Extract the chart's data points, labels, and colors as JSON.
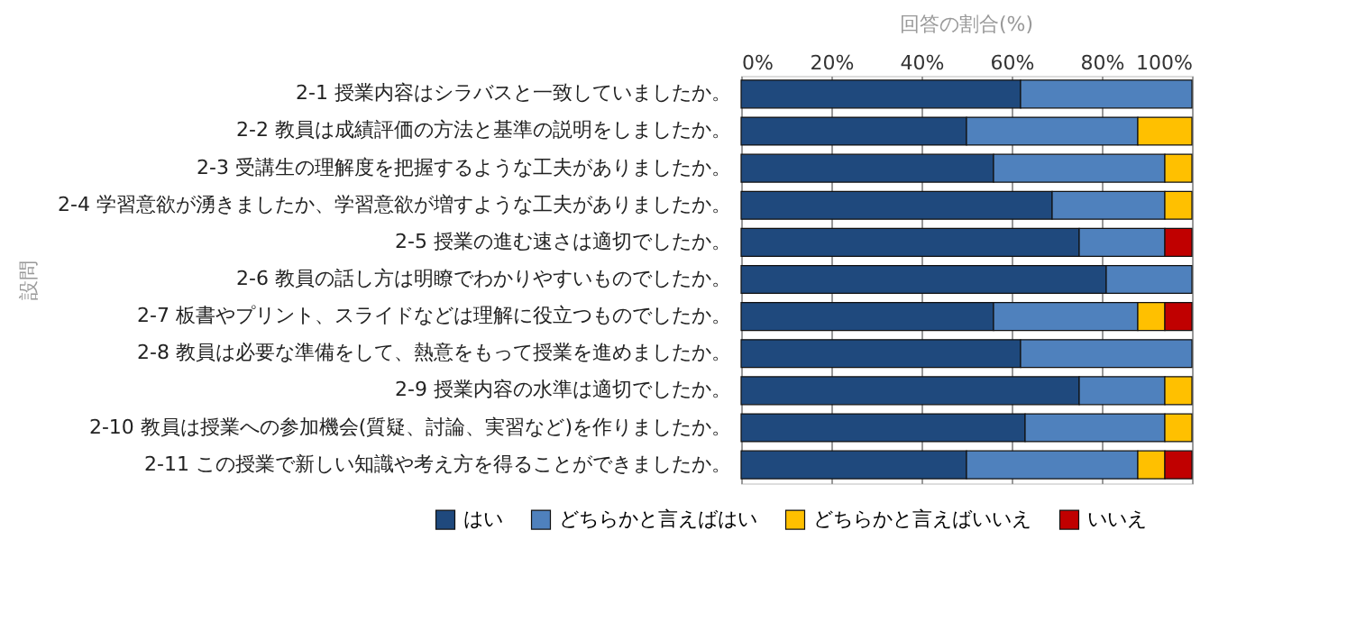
{
  "chart_data": {
    "type": "bar",
    "orientation": "horizontal",
    "stacked": true,
    "title": "回答の割合(%)",
    "ylabel": "設問",
    "categories": [
      "2-1 授業内容はシラバスと一致していましたか。",
      "2-2 教員は成績評価の方法と基準の説明をしましたか。",
      "2-3 受講生の理解度を把握するような工夫がありましたか。",
      "2-4 学習意欲が湧きましたか、学習意欲が増すような工夫がありましたか。",
      "2-5 授業の進む速さは適切でしたか。",
      "2-6 教員の話し方は明瞭でわかりやすいものでしたか。",
      "2-7 板書やプリント、スライドなどは理解に役立つものでしたか。",
      "2-8 教員は必要な準備をして、熱意をもって授業を進めましたか。",
      "2-9 授業内容の水準は適切でしたか。",
      "2-10 教員は授業への参加機会(質疑、討論、実習など)を作りましたか。",
      "2-11 この授業で新しい知識や考え方を得ることができましたか。"
    ],
    "series": [
      {
        "name": "はい",
        "color": "#1f497d",
        "values": [
          62,
          50,
          56,
          69,
          75,
          81,
          56,
          62,
          75,
          63,
          50
        ]
      },
      {
        "name": "どちらかと言えばはい",
        "color": "#4f81bd",
        "values": [
          38,
          38,
          38,
          25,
          19,
          19,
          32,
          38,
          19,
          31,
          38
        ]
      },
      {
        "name": "どちらかと言えばいいえ",
        "color": "#ffc000",
        "values": [
          0,
          12,
          6,
          6,
          0,
          0,
          6,
          0,
          6,
          6,
          6
        ]
      },
      {
        "name": "いいえ",
        "color": "#c00000",
        "values": [
          0,
          0,
          0,
          0,
          6,
          0,
          6,
          0,
          0,
          0,
          6
        ]
      }
    ],
    "xlim": [
      0,
      100
    ],
    "xticks": [
      {
        "value": 0,
        "label": "0%"
      },
      {
        "value": 20,
        "label": "20%"
      },
      {
        "value": 40,
        "label": "40%"
      },
      {
        "value": 60,
        "label": "60%"
      },
      {
        "value": 80,
        "label": "80%"
      },
      {
        "value": 100,
        "label": "100%"
      }
    ],
    "grid": "x",
    "legend": "bottom"
  }
}
